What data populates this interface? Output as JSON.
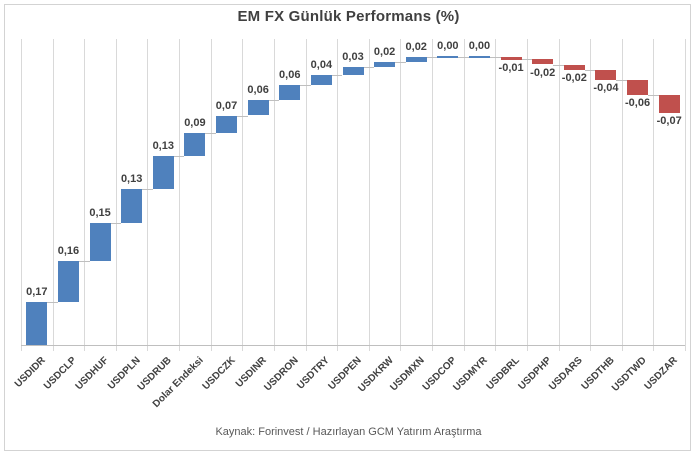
{
  "window": {
    "background_color": "#ffffff",
    "border_color": "#d3d3d3"
  },
  "chart_data": {
    "type": "bar",
    "subtype": "waterfall",
    "title": "EM FX Günlük Performans (%)",
    "categories": [
      "USDIDR",
      "USDCLP",
      "USDHUF",
      "USDPLN",
      "USDRUB",
      "Dolar Endeksi",
      "USDCZK",
      "USDINR",
      "USDRON",
      "USDTRY",
      "USDPEN",
      "USDKRW",
      "USDMXN",
      "USDCOP",
      "USDMYR",
      "USDBRL",
      "USDPHP",
      "USDARS",
      "USDTHB",
      "USDTWD",
      "USDZAR"
    ],
    "values": [
      0.17,
      0.16,
      0.15,
      0.13,
      0.13,
      0.09,
      0.07,
      0.06,
      0.06,
      0.04,
      0.03,
      0.02,
      0.02,
      0.0,
      0.0,
      -0.01,
      -0.02,
      -0.02,
      -0.04,
      -0.06,
      -0.07
    ],
    "value_labels": [
      "0,17",
      "0,16",
      "0,15",
      "0,13",
      "0,13",
      "0,09",
      "0,07",
      "0,06",
      "0,06",
      "0,04",
      "0,03",
      "0,02",
      "0,02",
      "0,00",
      "0,00",
      "-0,01",
      "-0,02",
      "-0,02",
      "-0,04",
      "-0,06",
      "-0,07"
    ],
    "xlabel": "",
    "ylabel": "",
    "ylim": [
      0,
      1.2
    ],
    "grid": "vertical category-boundary gridlines only",
    "legend": "none",
    "bar_colors": {
      "positive": "#4F81BD",
      "negative": "#C0504D"
    },
    "gridline_color": "#d9d9d9",
    "axis_color": "#bfbfbf",
    "label_color": "#404040",
    "source_note": "Kaynak: Forinvest / Hazırlayan GCM Yatırım Araştırma"
  }
}
